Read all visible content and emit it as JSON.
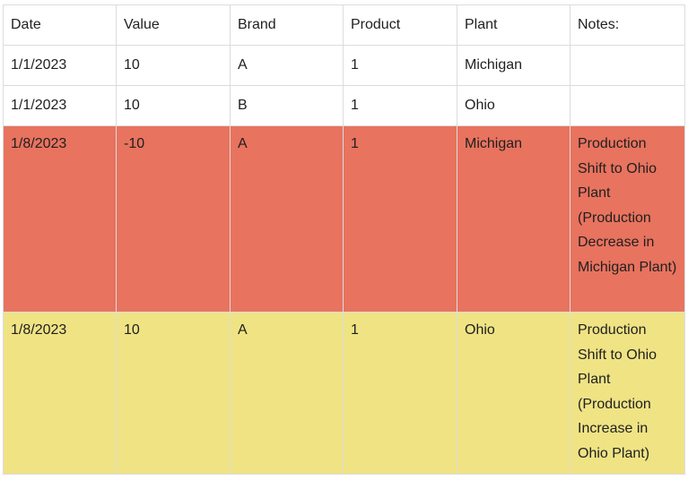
{
  "table": {
    "headers": [
      "Date",
      "Value",
      "Brand",
      "Product",
      "Plant",
      "Notes:"
    ],
    "rows": [
      {
        "date": "1/1/2023",
        "value": "10",
        "brand": "A",
        "product": "1",
        "plant": "Michigan",
        "notes": ""
      },
      {
        "date": "1/1/2023",
        "value": "10",
        "brand": "B",
        "product": "1",
        "plant": "Ohio",
        "notes": ""
      },
      {
        "date": "1/8/2023",
        "value": "-10",
        "brand": "A",
        "product": "1",
        "plant": "Michigan",
        "notes": "Production Shift to Ohio Plant (Production Decrease in Michigan Plant)"
      },
      {
        "date": "1/8/2023",
        "value": "10",
        "brand": "A",
        "product": "1",
        "plant": "Ohio",
        "notes": "Production Shift to Ohio Plant (Production Increase in Ohio Plant)"
      }
    ]
  },
  "colors": {
    "highlight_red": "#e8735f",
    "highlight_yellow": "#efe384",
    "border": "#dcdcdc"
  }
}
